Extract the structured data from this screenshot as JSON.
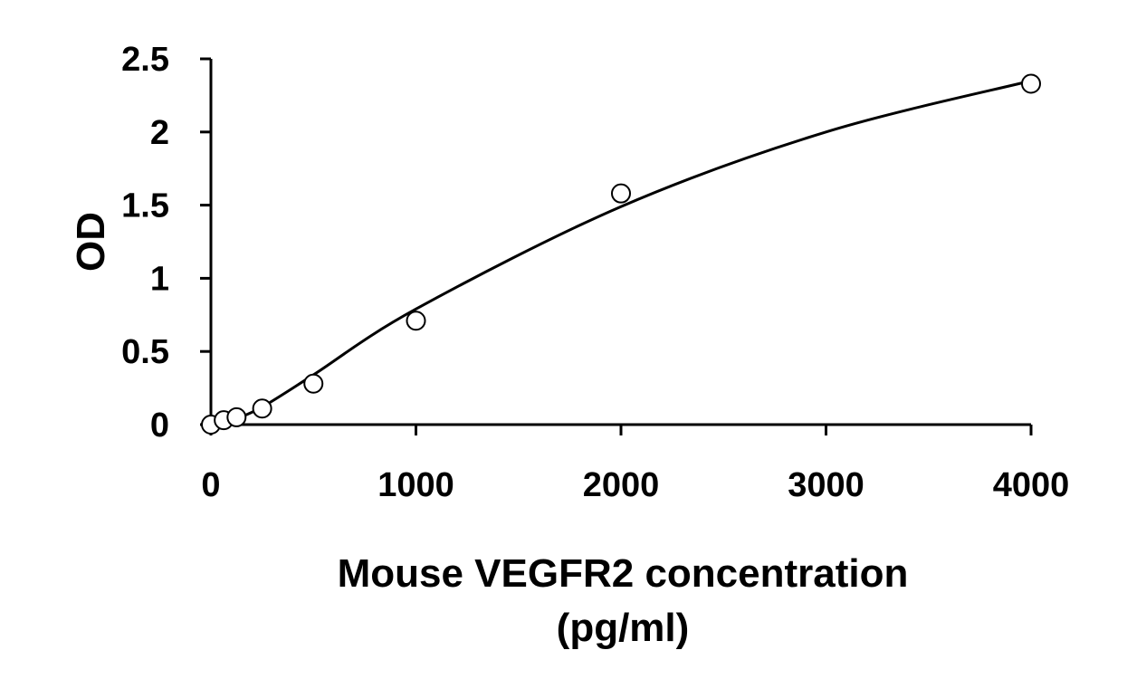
{
  "chart_data": {
    "type": "scatter",
    "title": "",
    "xlabel": "Mouse VEGFR2 concentration",
    "xlabel_unit": "(pg/ml)",
    "ylabel": "OD",
    "xlim": [
      0,
      4000
    ],
    "ylim": [
      0,
      2.5
    ],
    "x_ticks": [
      0,
      1000,
      2000,
      3000,
      4000
    ],
    "x_tick_labels": [
      "0",
      "1000",
      "2000",
      "3000",
      "4000"
    ],
    "y_ticks": [
      0,
      0.5,
      1,
      1.5,
      2,
      2.5
    ],
    "y_tick_labels": [
      "0",
      "0.5",
      "1",
      "1.5",
      "2",
      "2.5"
    ],
    "grid": false,
    "legend": "none",
    "series": [
      {
        "marker": "open-circle",
        "points": [
          {
            "x": 0,
            "y": 0.0
          },
          {
            "x": 62.5,
            "y": 0.03
          },
          {
            "x": 125,
            "y": 0.05
          },
          {
            "x": 250,
            "y": 0.11
          },
          {
            "x": 500,
            "y": 0.28
          },
          {
            "x": 1000,
            "y": 0.71
          },
          {
            "x": 2000,
            "y": 1.58
          },
          {
            "x": 4000,
            "y": 2.33
          }
        ]
      }
    ],
    "fit_curve": {
      "type": "polynomial",
      "samples": [
        {
          "x": 125,
          "y": 0.04
        },
        {
          "x": 250,
          "y": 0.12
        },
        {
          "x": 500,
          "y": 0.34
        },
        {
          "x": 1000,
          "y": 0.79
        },
        {
          "x": 2000,
          "y": 1.49
        },
        {
          "x": 3000,
          "y": 2.0
        },
        {
          "x": 4000,
          "y": 2.35
        }
      ]
    },
    "colors": {
      "axis": "#000000",
      "marker_stroke": "#000000",
      "marker_fill": "#ffffff",
      "curve": "#000000"
    }
  }
}
